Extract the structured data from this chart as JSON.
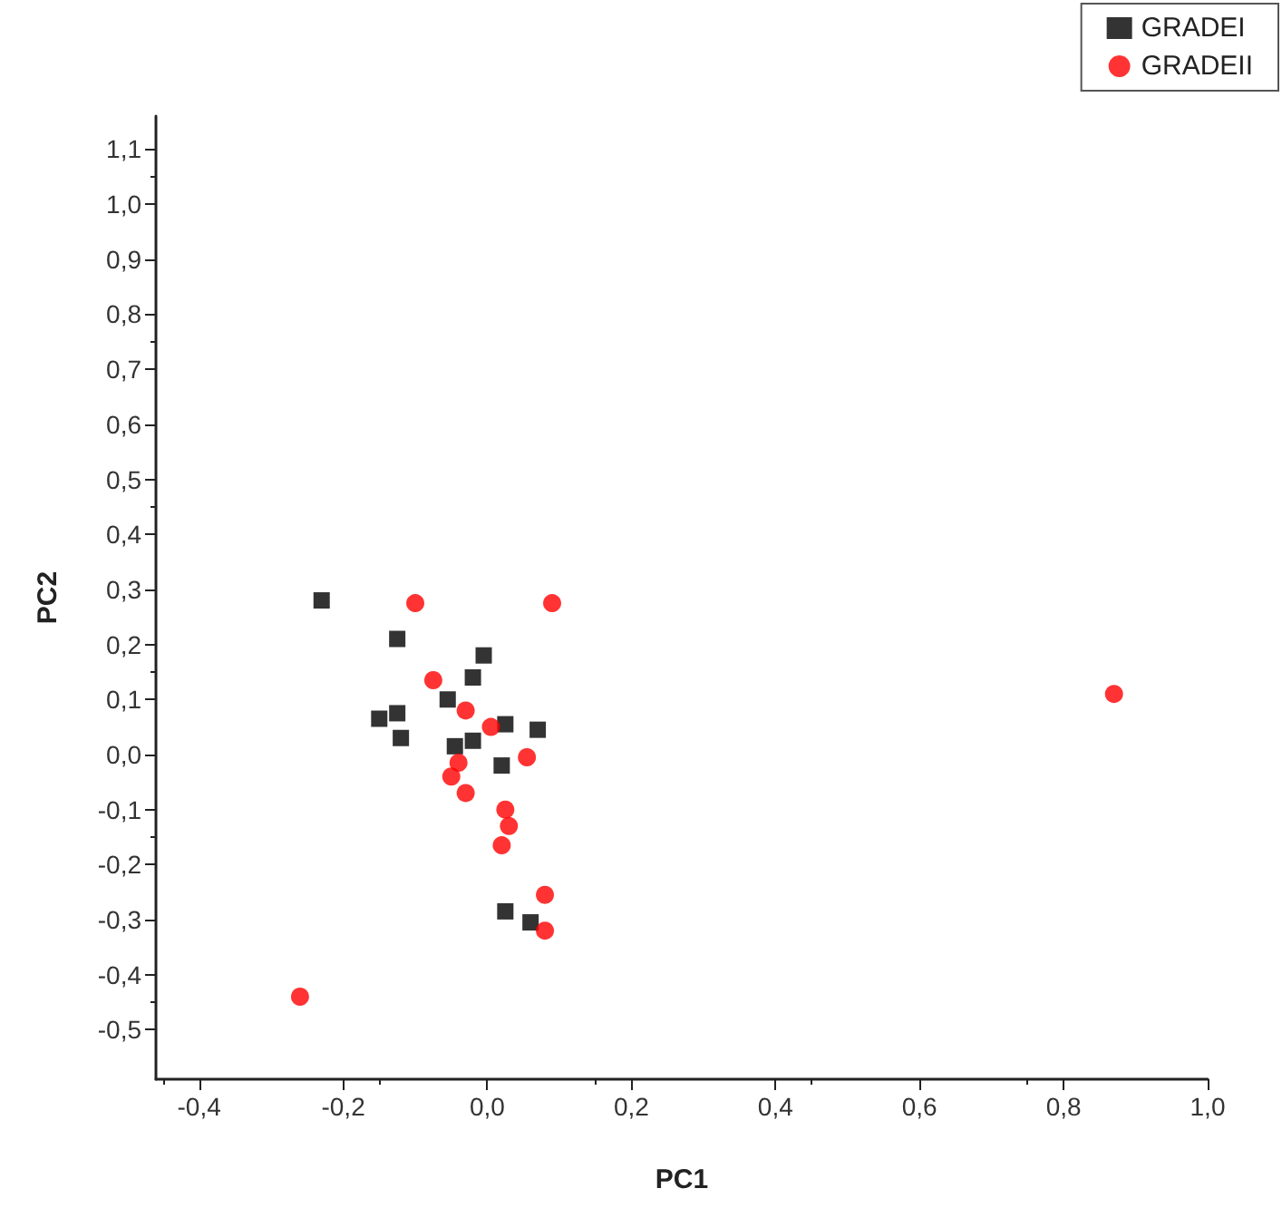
{
  "chart_data": {
    "type": "scatter",
    "xlabel": "PC1",
    "ylabel": "PC2",
    "xlim": [
      -0.46,
      1.0
    ],
    "xticks": [
      {
        "value": -0.4,
        "label": "-0,4"
      },
      {
        "value": -0.2,
        "label": "-0,2"
      },
      {
        "value": 0,
        "label": "0,0"
      },
      {
        "value": 0.2,
        "label": "0,2"
      },
      {
        "value": 0.4,
        "label": "0,4"
      },
      {
        "value": 0.6,
        "label": "0,6"
      },
      {
        "value": 0.8,
        "label": "0,8"
      },
      {
        "value": 1.0,
        "label": "1,0"
      }
    ],
    "ylim": [
      -0.59,
      1.16
    ],
    "yticks": [
      {
        "value": -0.5,
        "label": "-0,5"
      },
      {
        "value": -0.4,
        "label": "-0,4"
      },
      {
        "value": -0.3,
        "label": "-0,3"
      },
      {
        "value": -0.2,
        "label": "-0,2"
      },
      {
        "value": -0.1,
        "label": "-0,1"
      },
      {
        "value": 0,
        "label": "0,0"
      },
      {
        "value": 0.1,
        "label": "0,1"
      },
      {
        "value": 0.2,
        "label": "0,2"
      },
      {
        "value": 0.3,
        "label": "0,3"
      },
      {
        "value": 0.4,
        "label": "0,4"
      },
      {
        "value": 0.5,
        "label": "0,5"
      },
      {
        "value": 0.6,
        "label": "0,6"
      },
      {
        "value": 0.7,
        "label": "0,7"
      },
      {
        "value": 0.8,
        "label": "0,8"
      },
      {
        "value": 0.9,
        "label": "0,9"
      },
      {
        "value": 1.0,
        "label": "1,0"
      },
      {
        "value": 1.1,
        "label": "1,1"
      }
    ],
    "grid": false,
    "legend": "top right",
    "series": [
      {
        "name": "GRADEI",
        "color": "#000000",
        "marker": "square",
        "x": [
          -0.23,
          -0.125,
          -0.005,
          -0.02,
          -0.055,
          -0.15,
          -0.125,
          -0.12,
          0.025,
          0.07,
          -0.045,
          -0.02,
          0.02,
          0.025,
          0.06
        ],
        "values": [
          0.28,
          0.21,
          0.18,
          0.14,
          0.1,
          0.065,
          0.075,
          0.03,
          0.055,
          0.045,
          0.015,
          0.025,
          -0.02,
          -0.285,
          -0.305
        ]
      },
      {
        "name": "GRADEII",
        "color": "#ff0000",
        "marker": "circle",
        "x": [
          -0.1,
          0.09,
          -0.075,
          -0.03,
          0.005,
          0.055,
          -0.04,
          -0.05,
          -0.03,
          0.025,
          0.03,
          0.02,
          0.08,
          0.08,
          -0.26,
          0.87
        ],
        "values": [
          0.275,
          0.275,
          0.135,
          0.08,
          0.05,
          -0.005,
          -0.015,
          -0.04,
          -0.07,
          -0.1,
          -0.13,
          -0.165,
          -0.255,
          -0.32,
          -0.44,
          0.11
        ]
      }
    ]
  }
}
